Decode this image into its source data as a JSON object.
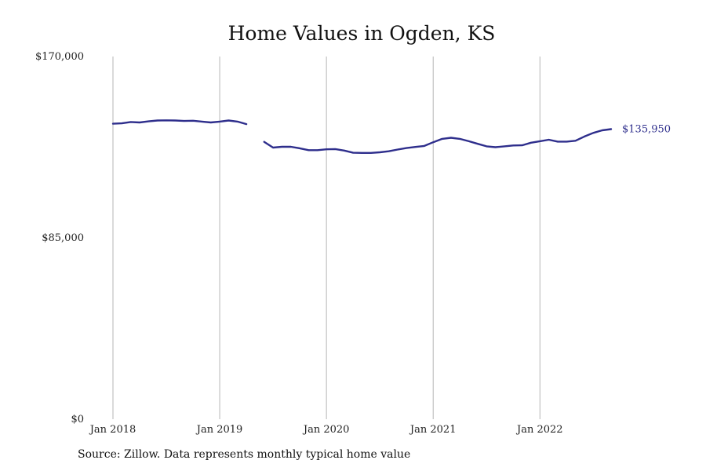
{
  "chart_data": {
    "type": "line",
    "title": "Home Values in Ogden, KS",
    "xlabel": "",
    "ylabel": "",
    "ylim": [
      0,
      170000
    ],
    "yticks": [
      {
        "value": 0,
        "label": "$0"
      },
      {
        "value": 85000,
        "label": "$85,000"
      },
      {
        "value": 170000,
        "label": "$170,000"
      }
    ],
    "xlim": [
      "2018-01",
      "2022-09"
    ],
    "xticks": [
      {
        "value": "2018-01",
        "label": "Jan 2018"
      },
      {
        "value": "2019-01",
        "label": "Jan 2019"
      },
      {
        "value": "2020-01",
        "label": "Jan 2020"
      },
      {
        "value": "2021-01",
        "label": "Jan 2021"
      },
      {
        "value": "2022-01",
        "label": "Jan 2022"
      }
    ],
    "grid": "vertical",
    "legend": "none",
    "series": [
      {
        "color": "#2e2e8c",
        "points": [
          {
            "x": "2018-01",
            "y": 138500
          },
          {
            "x": "2018-02",
            "y": 138700
          },
          {
            "x": "2018-03",
            "y": 139300
          },
          {
            "x": "2018-04",
            "y": 139100
          },
          {
            "x": "2018-05",
            "y": 139600
          },
          {
            "x": "2018-06",
            "y": 140000
          },
          {
            "x": "2018-07",
            "y": 140100
          },
          {
            "x": "2018-08",
            "y": 140000
          },
          {
            "x": "2018-09",
            "y": 139800
          },
          {
            "x": "2018-10",
            "y": 139900
          },
          {
            "x": "2018-11",
            "y": 139500
          },
          {
            "x": "2018-12",
            "y": 139100
          },
          {
            "x": "2019-01",
            "y": 139500
          },
          {
            "x": "2019-02",
            "y": 140000
          },
          {
            "x": "2019-03",
            "y": 139500
          },
          {
            "x": "2019-04",
            "y": 138300
          },
          {
            "x": "2019-05",
            "y": null
          },
          {
            "x": "2019-06",
            "y": 130000
          },
          {
            "x": "2019-07",
            "y": 127300
          },
          {
            "x": "2019-08",
            "y": 127700
          },
          {
            "x": "2019-09",
            "y": 127700
          },
          {
            "x": "2019-10",
            "y": 127000
          },
          {
            "x": "2019-11",
            "y": 126100
          },
          {
            "x": "2019-12",
            "y": 126100
          },
          {
            "x": "2020-01",
            "y": 126500
          },
          {
            "x": "2020-02",
            "y": 126600
          },
          {
            "x": "2020-03",
            "y": 125900
          },
          {
            "x": "2020-04",
            "y": 124900
          },
          {
            "x": "2020-05",
            "y": 124800
          },
          {
            "x": "2020-06",
            "y": 124800
          },
          {
            "x": "2020-07",
            "y": 125100
          },
          {
            "x": "2020-08",
            "y": 125600
          },
          {
            "x": "2020-09",
            "y": 126400
          },
          {
            "x": "2020-10",
            "y": 127100
          },
          {
            "x": "2020-11",
            "y": 127600
          },
          {
            "x": "2020-12",
            "y": 128100
          },
          {
            "x": "2021-01",
            "y": 129800
          },
          {
            "x": "2021-02",
            "y": 131400
          },
          {
            "x": "2021-03",
            "y": 131900
          },
          {
            "x": "2021-04",
            "y": 131400
          },
          {
            "x": "2021-05",
            "y": 130300
          },
          {
            "x": "2021-06",
            "y": 129100
          },
          {
            "x": "2021-07",
            "y": 127900
          },
          {
            "x": "2021-08",
            "y": 127500
          },
          {
            "x": "2021-09",
            "y": 127900
          },
          {
            "x": "2021-10",
            "y": 128300
          },
          {
            "x": "2021-11",
            "y": 128400
          },
          {
            "x": "2021-12",
            "y": 129600
          },
          {
            "x": "2022-01",
            "y": 130300
          },
          {
            "x": "2022-02",
            "y": 131000
          },
          {
            "x": "2022-03",
            "y": 130100
          },
          {
            "x": "2022-04",
            "y": 130100
          },
          {
            "x": "2022-05",
            "y": 130500
          },
          {
            "x": "2022-06",
            "y": 132500
          },
          {
            "x": "2022-07",
            "y": 134200
          },
          {
            "x": "2022-08",
            "y": 135400
          },
          {
            "x": "2022-09",
            "y": 135950
          }
        ],
        "end_label": "$135,950"
      }
    ]
  },
  "source_note": "Source: Zillow. Data represents monthly typical home value"
}
